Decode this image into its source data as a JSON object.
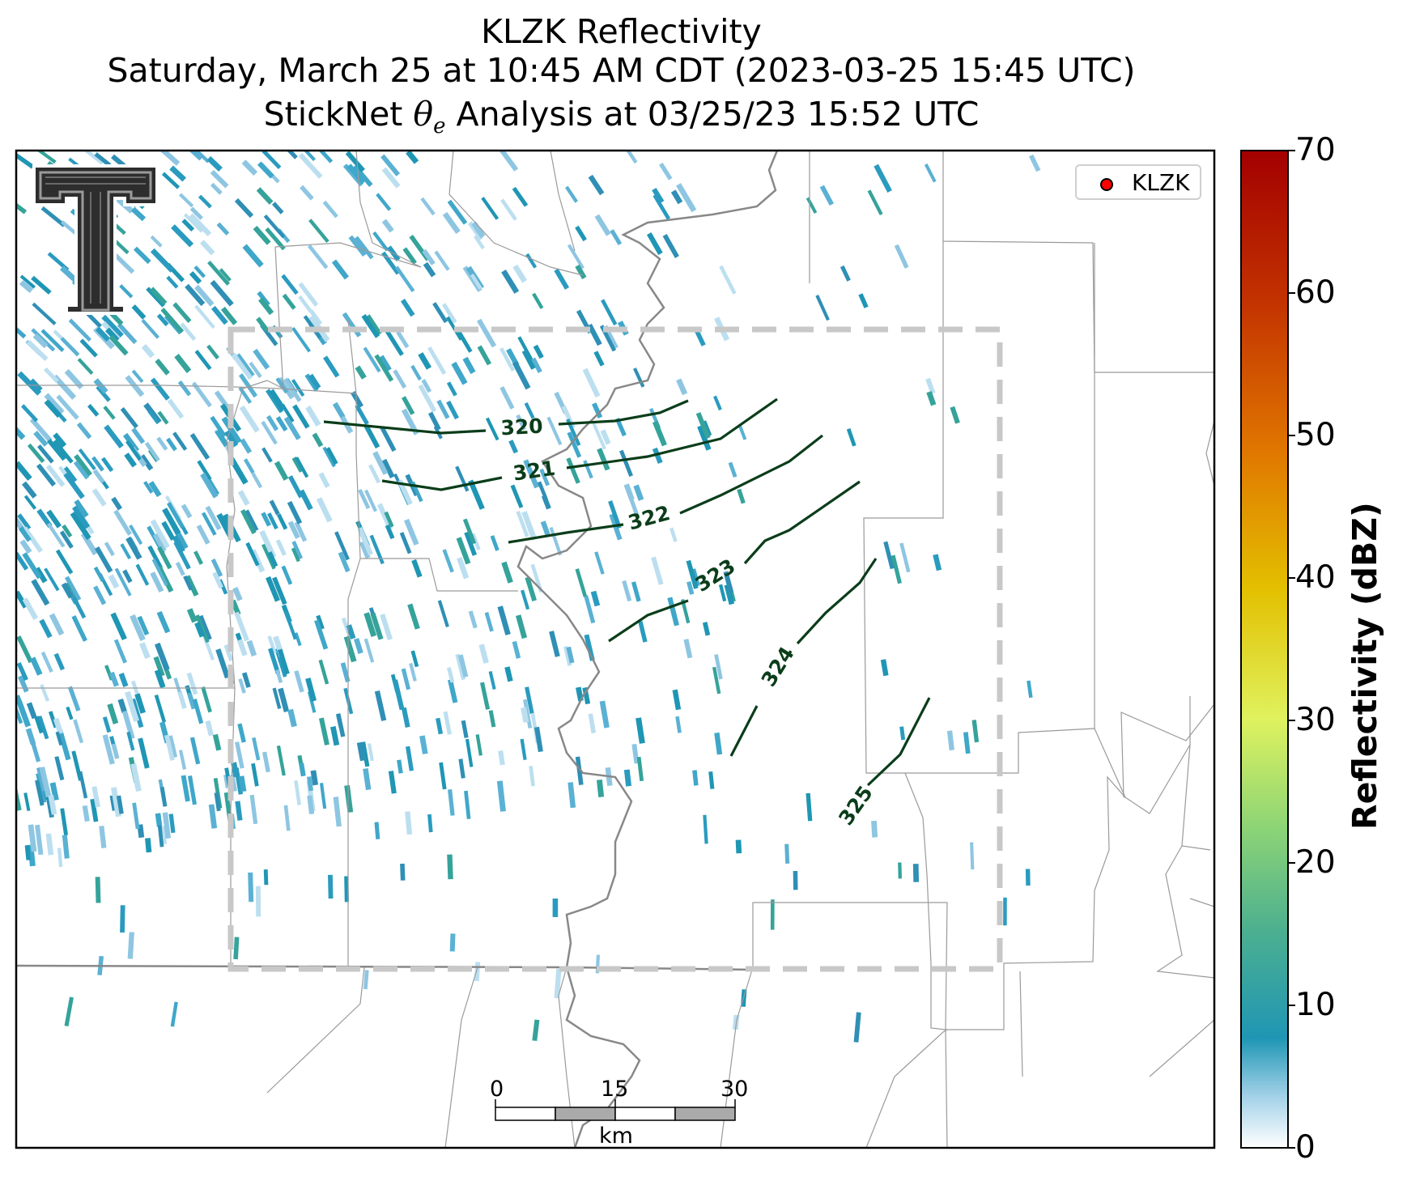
{
  "title": {
    "line1": "KLZK Reflectivity",
    "line2": "Saturday, March 25 at 10:45 AM CDT (2023-03-25 15:45 UTC)",
    "line3_prefix": "StickNet ",
    "line3_theta": "θ",
    "line3_sub": "e",
    "line3_suffix": " Analysis at 03/25/23 15:52 UTC"
  },
  "legend": {
    "label": "KLZK",
    "marker_color": "#ff0000"
  },
  "colorbar": {
    "label": "Reflectivity (dBZ)",
    "ticks": [
      "0",
      "10",
      "20",
      "30",
      "40",
      "50",
      "60",
      "70"
    ],
    "range": [
      0,
      70
    ],
    "colors": [
      "#ffffff",
      "#a6d3e9",
      "#1f96b4",
      "#4db08f",
      "#8cd476",
      "#dff25e",
      "#e3c000",
      "#e07600",
      "#c23200",
      "#a30000"
    ]
  },
  "contours": {
    "color": "#0b3d1a",
    "levels": [
      "320",
      "321",
      "322",
      "323",
      "324",
      "325"
    ]
  },
  "scalebar": {
    "labels": [
      "0",
      "15",
      "30"
    ],
    "unit": "km"
  },
  "logo": {
    "letter": "T"
  },
  "style": {
    "state_border": "#888888",
    "county_line": "#9a9a9a",
    "domain_box": "#c8c8c8"
  }
}
